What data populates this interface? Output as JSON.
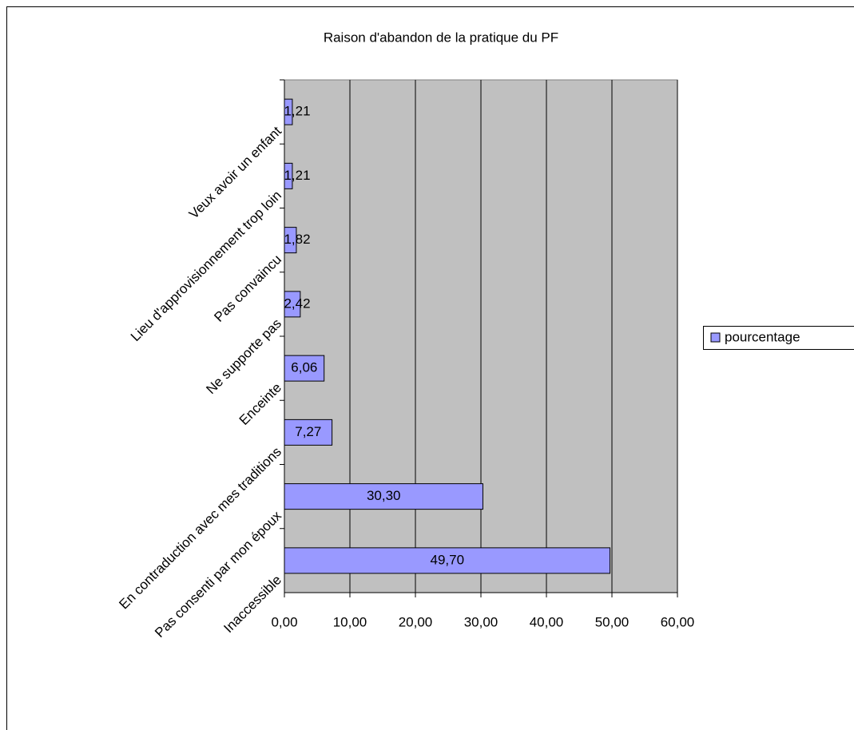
{
  "chart_data": {
    "type": "bar",
    "orientation": "horizontal",
    "title": "Raison d'abandon de la pratique du PF",
    "categories": [
      "Veux avoir un enfant",
      "Lieu d'approvisionnement trop loin",
      "Pas convaincu",
      "Ne supporte pas",
      "Enceinte",
      "En contraduction avec mes traditions",
      "Pas consenti par mon époux",
      "Inaccessible"
    ],
    "series": [
      {
        "name": "pourcentage",
        "color": "#9999ff",
        "values": [
          1.21,
          1.21,
          1.82,
          2.42,
          6.06,
          7.27,
          30.3,
          49.7
        ],
        "value_labels": [
          "1,21",
          "1,21",
          "1,82",
          "2,42",
          "6,06",
          "7,27",
          "30,30",
          "49,70"
        ]
      }
    ],
    "xlim": [
      0,
      60
    ],
    "xticks": [
      {
        "value": 0,
        "label": "0,00"
      },
      {
        "value": 10,
        "label": "10,00"
      },
      {
        "value": 20,
        "label": "20,00"
      },
      {
        "value": 30,
        "label": "30,00"
      },
      {
        "value": 40,
        "label": "40,00"
      },
      {
        "value": 50,
        "label": "50,00"
      },
      {
        "value": 60,
        "label": "60,00"
      }
    ],
    "grid": true,
    "legend": "right"
  }
}
